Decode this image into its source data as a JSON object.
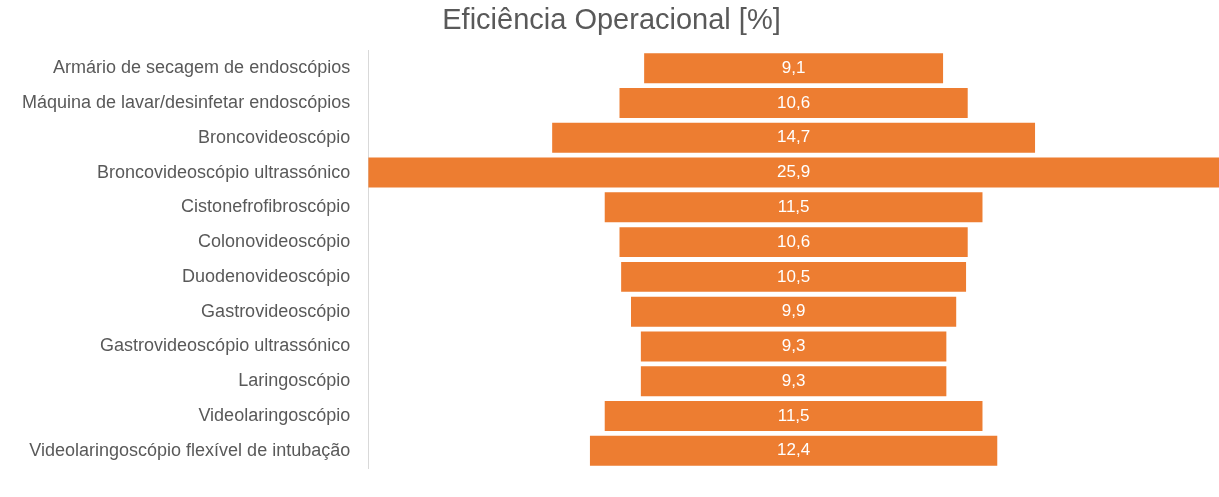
{
  "chart_data": {
    "type": "other",
    "title": "Eficiência Operacional [%]",
    "categories": [
      "Armário de secagem de endoscópios",
      "Máquina de lavar/desinfetar endoscópios",
      "Broncovideoscópio",
      "Broncovideoscópio ultrassónico",
      "Cistonefrofibroscópio",
      "Colonovideoscópio",
      "Duodenovideoscópio",
      "Gastrovideoscópio",
      "Gastrovideoscópio ultrassónico",
      "Laringoscópio",
      "Videolaringoscópio",
      "Videolaringoscópio flexível de intubação"
    ],
    "values": [
      9.1,
      10.6,
      14.7,
      25.9,
      11.5,
      10.6,
      10.5,
      9.9,
      9.3,
      9.3,
      11.5,
      12.4
    ],
    "value_labels": [
      "9,1",
      "10,6",
      "14,7",
      "25,9",
      "11,5",
      "10,6",
      "10,5",
      "9,9",
      "9,3",
      "9,3",
      "11,5",
      "12,4"
    ],
    "color": "#ed7d31"
  }
}
